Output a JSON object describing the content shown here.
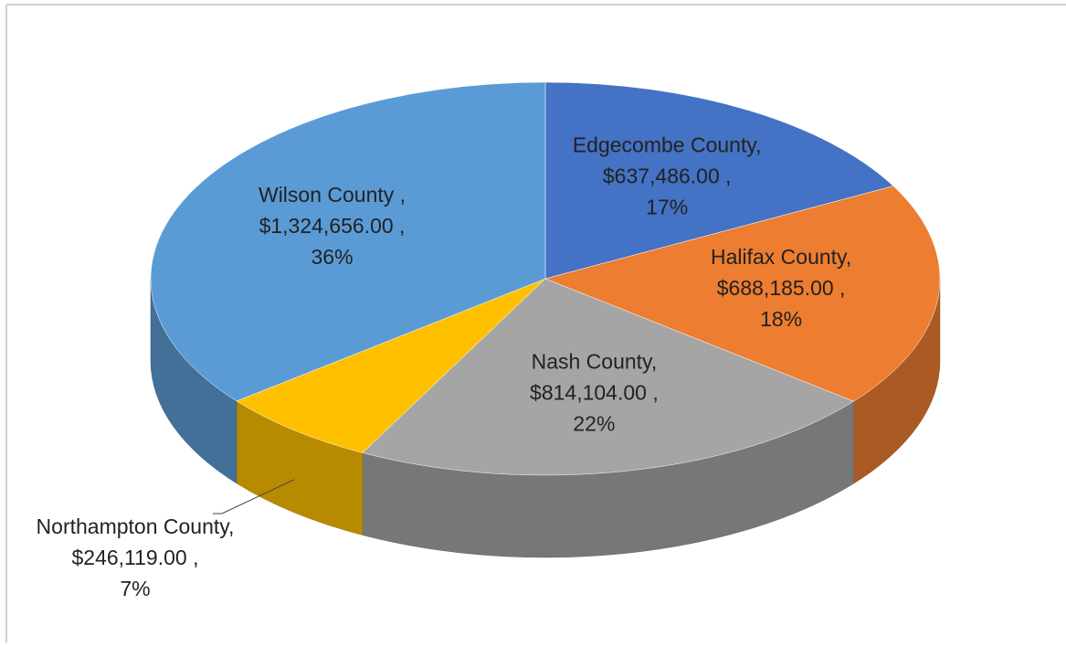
{
  "chart_data": {
    "type": "pie3d",
    "categories": [
      "Edgecombe County,",
      "Halifax County,",
      "Nash County,",
      "Northampton County,",
      "Wilson County ,"
    ],
    "values": [
      637486,
      688185,
      814104,
      246119,
      1324656
    ],
    "value_labels": [
      "$637,486.00 ,",
      "$688,185.00 ,",
      "$814,104.00 ,",
      "$246,119.00 ,",
      "$1,324,656.00 ,"
    ],
    "percent_labels": [
      "17%",
      "18%",
      "22%",
      "7%",
      "36%"
    ],
    "colors": [
      "#4472c4",
      "#ed7d31",
      "#a5a5a5",
      "#ffc000",
      "#5b9bd5"
    ]
  }
}
